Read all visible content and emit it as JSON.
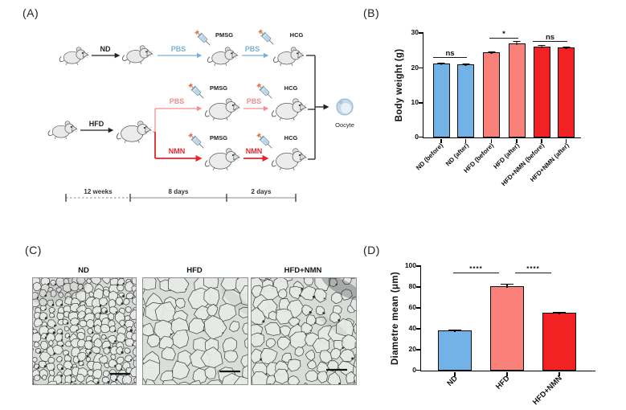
{
  "panels": {
    "a": "(A)",
    "b": "(B)",
    "c": "(C)",
    "d": "(D)"
  },
  "panelA": {
    "nd": "ND",
    "hfd": "HFD",
    "pbs": "PBS",
    "nmn": "NMN",
    "pmsg": "PMSG",
    "hcg": "HCG",
    "oocyte": "Oocyte",
    "timeline": [
      "12 weeks",
      "8 days",
      "2 days"
    ],
    "colors": {
      "blue": "#79AFD6",
      "pink": "#F0908E",
      "red": "#E2262B",
      "black": "#222222"
    }
  },
  "panelC": {
    "titles": [
      "ND",
      "HFD",
      "HFD+NMN"
    ]
  },
  "chart_data": [
    {
      "type": "bar",
      "panel": "B",
      "title": "",
      "xlabel": "",
      "ylabel": "Body weight (g)",
      "categories": [
        "ND (before)",
        "ND (after)",
        "HFD (before)",
        "HFD (after)",
        "HFD+NMN (before)",
        "HFD+NMN (after)"
      ],
      "values": [
        21,
        20.8,
        24.3,
        26.8,
        25.8,
        25.6
      ],
      "errors": [
        0.3,
        0.3,
        0.3,
        0.9,
        0.7,
        0.6
      ],
      "colors": [
        "#73B2E6",
        "#73B2E6",
        "#F9817A",
        "#F9817A",
        "#F32222",
        "#F32222"
      ],
      "ylim": [
        0,
        30
      ],
      "yticks": [
        "30",
        "20",
        "10",
        "0"
      ],
      "grid": false,
      "legend": "none",
      "significance": [
        {
          "between": [
            "ND (before)",
            "ND (after)"
          ],
          "label": "ns"
        },
        {
          "between": [
            "HFD (before)",
            "HFD (after)"
          ],
          "label": "*"
        },
        {
          "between": [
            "HFD+NMN (before)",
            "HFD+NMN (after)"
          ],
          "label": "ns"
        }
      ]
    },
    {
      "type": "bar",
      "panel": "D",
      "title": "",
      "xlabel": "",
      "ylabel": "Diametre mean (μm)",
      "categories": [
        "ND",
        "HFD",
        "HFD+NMN"
      ],
      "values": [
        38,
        80,
        55
      ],
      "errors": [
        1,
        3,
        1.5
      ],
      "colors": [
        "#73B2E6",
        "#F9817A",
        "#F32222"
      ],
      "ylim": [
        0,
        100
      ],
      "yticks": [
        "100",
        "80",
        "60",
        "40",
        "20",
        "0"
      ],
      "grid": false,
      "legend": "none",
      "significance": [
        {
          "between": [
            "ND",
            "HFD"
          ],
          "label": "****"
        },
        {
          "between": [
            "HFD",
            "HFD+NMN"
          ],
          "label": "****"
        }
      ]
    }
  ]
}
